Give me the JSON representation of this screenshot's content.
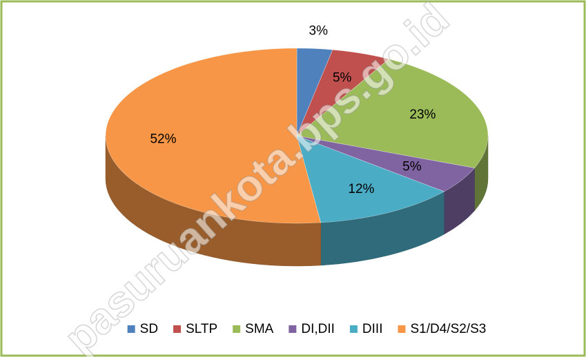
{
  "chart_data": {
    "type": "pie3d",
    "categories": [
      "SD",
      "SLTP",
      "SMA",
      "DI,DII",
      "DIII",
      "S1/D4/S2/S3"
    ],
    "values": [
      3,
      5,
      23,
      5,
      12,
      52
    ],
    "value_labels": [
      "3%",
      "5%",
      "23%",
      "5%",
      "12%",
      "52%"
    ],
    "colors": [
      "#4f81bd",
      "#c0504d",
      "#9bbb59",
      "#8064a2",
      "#4bacc6",
      "#f79646"
    ],
    "legend": "bottom",
    "watermark": "pasuruankota.bps.go.id"
  }
}
